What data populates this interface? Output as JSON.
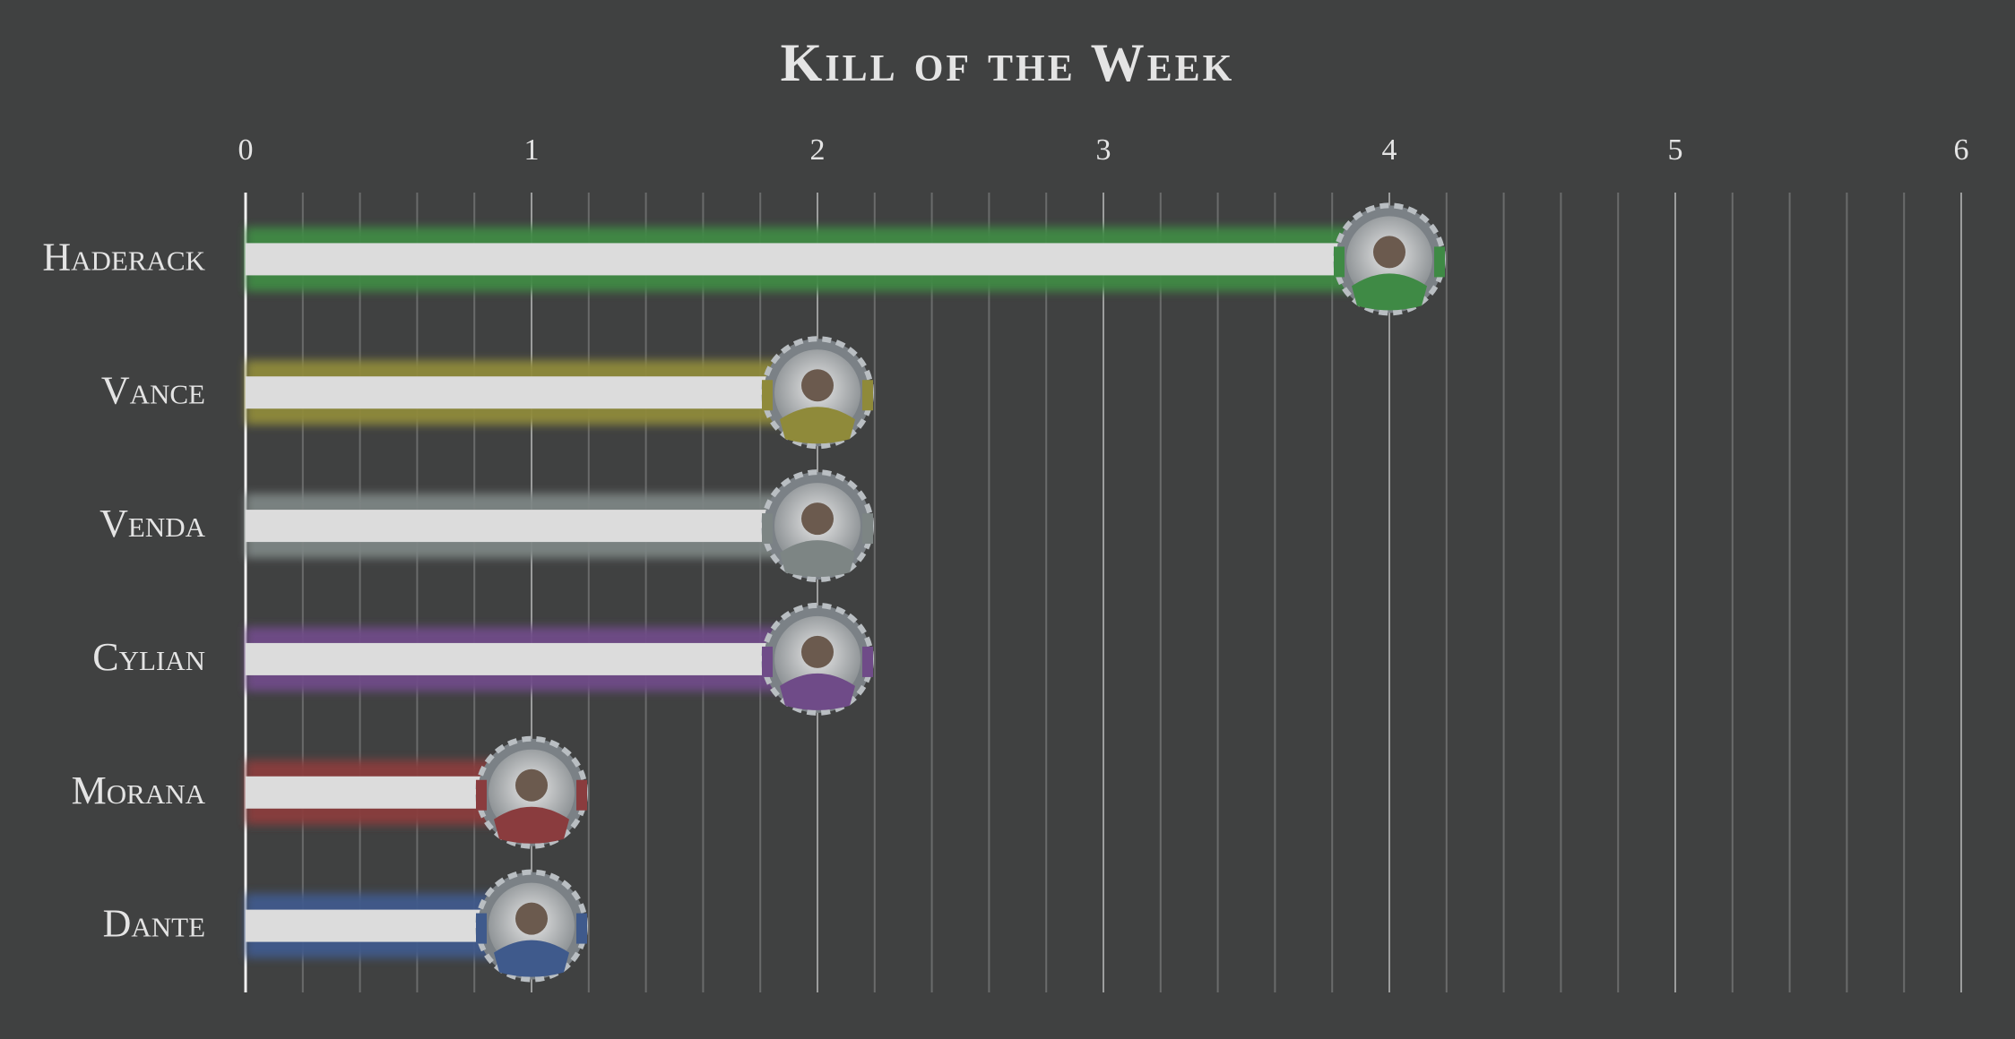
{
  "chart_data": {
    "type": "hbar",
    "title": "Kill of the Week",
    "categories": [
      "Haderack",
      "Vance",
      "Venda",
      "Cylian",
      "Morana",
      "Dante"
    ],
    "values": [
      4,
      2,
      2,
      2,
      1,
      1
    ],
    "colors": [
      "#3f8a45",
      "#8f8a3a",
      "#7d8584",
      "#6f4b88",
      "#8a3c3e",
      "#3f5a8c"
    ],
    "bar_color": "#dcdcdc",
    "xlim": [
      0,
      6
    ],
    "xticks": [
      0,
      1,
      2,
      3,
      4,
      5,
      6
    ],
    "grid": true
  }
}
